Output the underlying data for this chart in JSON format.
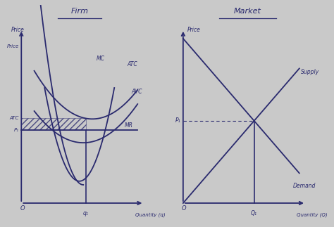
{
  "background_color": "#c9c9c9",
  "fig_title_left": "Firm",
  "fig_title_right": "Market",
  "line_color": "#2a2a6e",
  "firm": {
    "xlabel": "Quantity (q)",
    "ylabel": "Price",
    "xlim": [
      0,
      10
    ],
    "ylim": [
      0,
      10
    ],
    "q1": 5.0,
    "p1": 4.0,
    "atc_val": 4.6,
    "atc_label": "ATC",
    "avc_label": "AVC",
    "mc_label": "MC",
    "mr_label": "MR",
    "atc_tick": "ATC",
    "p1_tick": "P₁",
    "q1_tick": "q₁"
  },
  "market": {
    "xlabel": "Quantity (Q)",
    "ylabel": "Price",
    "xlim": [
      0,
      10
    ],
    "ylim": [
      0,
      10
    ],
    "q1": 5.5,
    "p1": 4.5,
    "supply_label": "Supply",
    "demand_label": "Demand",
    "p1_tick": "P₁",
    "q1_tick": "Q₁"
  }
}
